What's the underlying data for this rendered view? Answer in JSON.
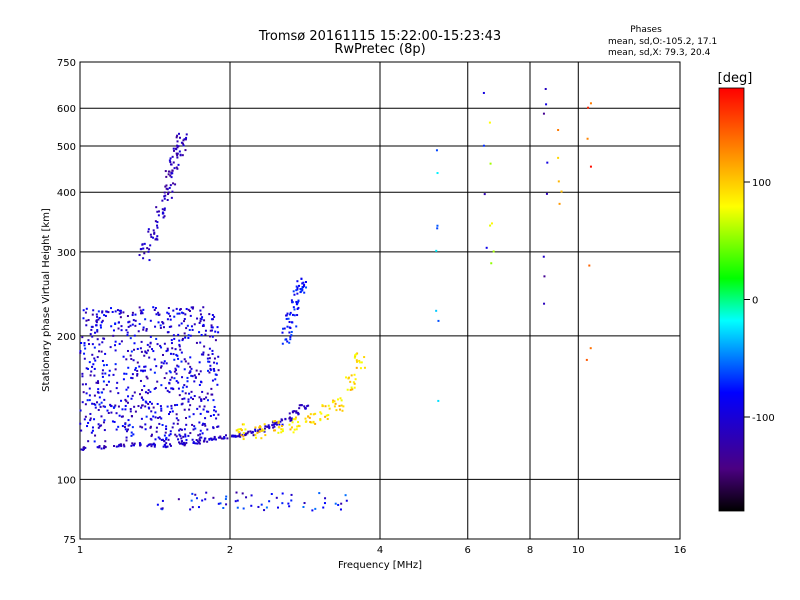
{
  "chart_data": {
    "type": "scatter",
    "title": "Tromsø 20161115 15:22:00-15:23:43",
    "subtitle": "RwPretec (8p)",
    "xlabel": "Frequency [MHz]",
    "ylabel": "Stationary phase Virtual Height [km]",
    "x_scale": "log",
    "y_scale": "log",
    "xlim": [
      1,
      16
    ],
    "ylim": [
      75,
      750
    ],
    "x_ticks": [
      1,
      2,
      4,
      6,
      8,
      10,
      16
    ],
    "y_ticks": [
      75,
      100,
      200,
      300,
      400,
      500,
      600,
      750
    ],
    "grid": true,
    "phase_stats": {
      "header": "Phases",
      "line_o": "mean, sd,O:-105.2, 17.1",
      "line_x": "mean, sd,X:  79.3, 20.4"
    },
    "colorbar": {
      "label": "[deg]",
      "range": [
        -180,
        180
      ],
      "ticks": [
        -100,
        0,
        100
      ],
      "colors": [
        "#000000",
        "#4b0082",
        "#0000ff",
        "#00ffff",
        "#00ff00",
        "#ffff00",
        "#ff8000",
        "#ff0000"
      ]
    },
    "traces": [
      {
        "kind": "o_trace_low",
        "x": [
          1.0,
          1.1,
          1.2,
          1.3,
          1.4,
          1.5,
          1.6,
          1.7,
          1.8,
          1.9,
          2.0,
          2.1,
          2.2,
          2.3,
          2.4,
          2.5,
          2.6,
          2.7,
          2.8
        ],
        "y": [
          116,
          117,
          118,
          118,
          118,
          118,
          119,
          120,
          121,
          122,
          123,
          124,
          125,
          127,
          129,
          131,
          134,
          138,
          142
        ],
        "phase": -110
      },
      {
        "kind": "o_cluster",
        "x": [
          1.35,
          1.4,
          1.45,
          1.5,
          1.52,
          1.55,
          1.58,
          1.6
        ],
        "y": [
          300,
          330,
          360,
          400,
          430,
          460,
          490,
          510
        ],
        "phase": -115
      },
      {
        "kind": "x_trace",
        "x": [
          2.1,
          2.3,
          2.5,
          2.7,
          2.9,
          3.1,
          3.3,
          3.5,
          3.65
        ],
        "y": [
          126,
          127,
          128,
          130,
          133,
          138,
          145,
          160,
          178
        ],
        "phase": 95
      },
      {
        "kind": "o_trace_mid",
        "x": [
          2.6,
          2.65,
          2.7,
          2.75,
          2.8
        ],
        "y": [
          200,
          215,
          230,
          245,
          255
        ],
        "phase": -80
      }
    ],
    "notes_sparse": {
      "x": [
        5.2,
        6.5,
        6.7,
        8.6,
        9.2,
        10.5
      ],
      "y": [
        300,
        620,
        560,
        470,
        640,
        380
      ],
      "phase": [
        -40,
        -90,
        80,
        -120,
        110,
        150
      ]
    }
  }
}
